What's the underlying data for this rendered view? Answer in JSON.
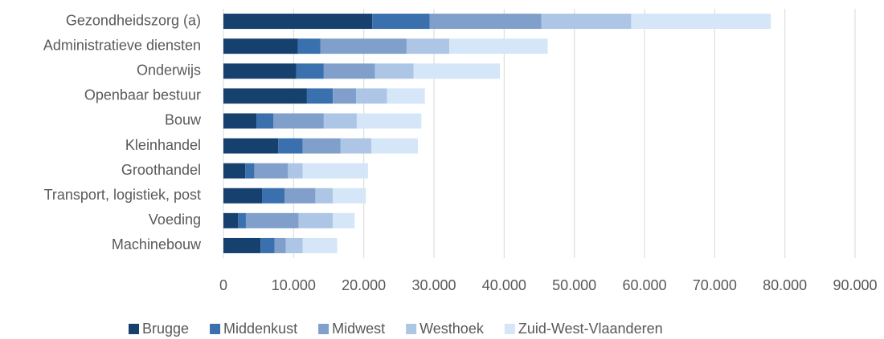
{
  "chart_data": {
    "type": "stacked_barh",
    "categories": [
      "Gezondheidszorg (a)",
      "Administratieve diensten",
      "Onderwijs",
      "Openbaar bestuur",
      "Bouw",
      "Kleinhandel",
      "Groothandel",
      "Transport, logistiek, post",
      "Voeding",
      "Machinebouw"
    ],
    "series": [
      {
        "name": "Brugge",
        "color": "#16416f",
        "values": [
          21200,
          10600,
          10400,
          11900,
          4700,
          7800,
          3100,
          5500,
          2100,
          5300
        ]
      },
      {
        "name": "Middenkust",
        "color": "#3a70ae",
        "values": [
          8200,
          3200,
          3900,
          3700,
          2400,
          3500,
          1300,
          3200,
          1100,
          2000
        ]
      },
      {
        "name": "Midwest",
        "color": "#809fcb",
        "values": [
          15900,
          12300,
          7300,
          3300,
          7200,
          5400,
          4800,
          4400,
          7500,
          1600
        ]
      },
      {
        "name": "Westhoek",
        "color": "#adc6e5",
        "values": [
          12800,
          6100,
          5500,
          4400,
          4700,
          4400,
          2100,
          2500,
          4900,
          2400
        ]
      },
      {
        "name": "Zuid-West-Vlaanderen",
        "color": "#d5e6f8",
        "values": [
          19900,
          14000,
          12300,
          5400,
          9200,
          6600,
          9300,
          4700,
          3100,
          4900
        ]
      }
    ],
    "xlim": [
      0,
      90000
    ],
    "xticks": [
      0,
      {
        "value": 10000,
        "label": "10.000"
      },
      {
        "value": 20000,
        "label": "20.000"
      },
      {
        "value": 30000,
        "label": "30.000"
      },
      {
        "value": 40000,
        "label": "40.000"
      },
      {
        "value": 50000,
        "label": "50.000"
      },
      {
        "value": 60000,
        "label": "60.000"
      },
      {
        "value": 70000,
        "label": "70.000"
      },
      {
        "value": 80000,
        "label": "80.000"
      },
      {
        "value": 90000,
        "label": "90.000"
      }
    ],
    "grid": true,
    "legend": "bottom"
  }
}
